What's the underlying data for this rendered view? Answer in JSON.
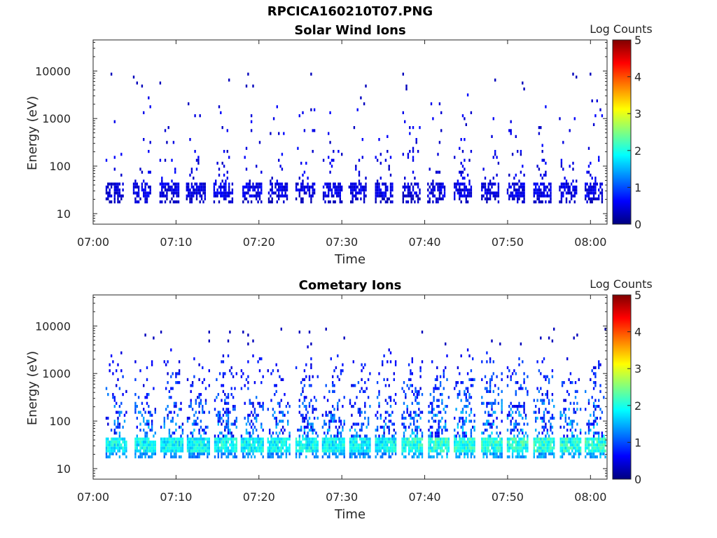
{
  "figure": {
    "title": "RPCICA160210T07.PNG"
  },
  "colormap": {
    "stops": [
      "#00007f",
      "#0000ff",
      "#0080ff",
      "#00ffff",
      "#80ff80",
      "#ffff00",
      "#ff8000",
      "#ff0000",
      "#800000"
    ]
  },
  "chart_data": [
    {
      "type": "heatmap",
      "title": "Solar Wind Ions",
      "xlabel": "Time",
      "ylabel": "Energy (eV)",
      "y_scale": "log",
      "xlim": [
        "07:00",
        "08:02"
      ],
      "ylim": [
        6,
        45000
      ],
      "x_ticks": [
        "07:00",
        "07:10",
        "07:20",
        "07:30",
        "07:40",
        "07:50",
        "08:00"
      ],
      "y_ticks": [
        10,
        100,
        1000,
        10000
      ],
      "y_tick_labels": [
        "10",
        "100",
        "1000",
        "10000"
      ],
      "colorbar": {
        "label": "Log Counts",
        "range": [
          0,
          5
        ],
        "ticks": [
          "0",
          "1",
          "2",
          "3",
          "4",
          "5"
        ]
      },
      "grid": false,
      "bursts": [
        {
          "t": 2.6,
          "intensity": 0.7,
          "high": 0.35
        },
        {
          "t": 5.9,
          "intensity": 0.9,
          "high": 0.7
        },
        {
          "t": 9.1,
          "intensity": 0.8,
          "high": 0.5
        },
        {
          "t": 12.3,
          "intensity": 0.8,
          "high": 0.5
        },
        {
          "t": 15.6,
          "intensity": 0.9,
          "high": 0.8
        },
        {
          "t": 19.1,
          "intensity": 0.85,
          "high": 0.5
        },
        {
          "t": 22.2,
          "intensity": 0.8,
          "high": 0.5
        },
        {
          "t": 25.5,
          "intensity": 0.85,
          "high": 0.6
        },
        {
          "t": 28.8,
          "intensity": 0.85,
          "high": 0.6
        },
        {
          "t": 31.9,
          "intensity": 0.85,
          "high": 0.7
        },
        {
          "t": 35.1,
          "intensity": 0.85,
          "high": 0.6
        },
        {
          "t": 38.4,
          "intensity": 0.8,
          "high": 0.8
        },
        {
          "t": 41.4,
          "intensity": 0.8,
          "high": 0.6
        },
        {
          "t": 44.6,
          "intensity": 0.85,
          "high": 0.9
        },
        {
          "t": 47.9,
          "intensity": 0.8,
          "high": 0.7
        },
        {
          "t": 51.0,
          "intensity": 0.85,
          "high": 0.8
        },
        {
          "t": 54.2,
          "intensity": 0.9,
          "high": 0.9
        },
        {
          "t": 57.3,
          "intensity": 0.85,
          "high": 0.7
        },
        {
          "t": 60.4,
          "intensity": 0.85,
          "high": 0.6
        }
      ]
    },
    {
      "type": "heatmap",
      "title": "Cometary Ions",
      "xlabel": "Time",
      "ylabel": "Energy (eV)",
      "y_scale": "log",
      "xlim": [
        "07:00",
        "08:02"
      ],
      "ylim": [
        6,
        45000
      ],
      "x_ticks": [
        "07:00",
        "07:10",
        "07:20",
        "07:30",
        "07:40",
        "07:50",
        "08:00"
      ],
      "y_ticks": [
        10,
        100,
        1000,
        10000
      ],
      "y_tick_labels": [
        "10",
        "100",
        "1000",
        "10000"
      ],
      "colorbar": {
        "label": "Log Counts",
        "range": [
          0,
          5
        ],
        "ticks": [
          "0",
          "1",
          "2",
          "3",
          "4",
          "5"
        ]
      },
      "grid": false,
      "bursts": [
        {
          "t": 2.8,
          "intensity": 1.0,
          "high": 0.6
        },
        {
          "t": 6.3,
          "intensity": 1.0,
          "high": 0.8
        },
        {
          "t": 9.4,
          "intensity": 1.0,
          "high": 0.7
        },
        {
          "t": 12.6,
          "intensity": 1.0,
          "high": 0.8
        },
        {
          "t": 15.9,
          "intensity": 1.0,
          "high": 0.8
        },
        {
          "t": 19.1,
          "intensity": 1.0,
          "high": 0.7
        },
        {
          "t": 22.3,
          "intensity": 1.0,
          "high": 0.7
        },
        {
          "t": 25.7,
          "intensity": 1.0,
          "high": 0.8
        },
        {
          "t": 28.9,
          "intensity": 1.0,
          "high": 0.8
        },
        {
          "t": 32.2,
          "intensity": 1.0,
          "high": 0.8
        },
        {
          "t": 35.3,
          "intensity": 1.0,
          "high": 0.8
        },
        {
          "t": 38.5,
          "intensity": 1.1,
          "high": 0.9
        },
        {
          "t": 41.7,
          "intensity": 1.1,
          "high": 0.9
        },
        {
          "t": 44.8,
          "intensity": 1.1,
          "high": 0.9
        },
        {
          "t": 48.1,
          "intensity": 1.1,
          "high": 0.9
        },
        {
          "t": 51.2,
          "intensity": 1.1,
          "high": 0.9
        },
        {
          "t": 54.4,
          "intensity": 1.1,
          "high": 0.9
        },
        {
          "t": 57.6,
          "intensity": 1.1,
          "high": 0.8
        },
        {
          "t": 60.6,
          "intensity": 1.1,
          "high": 0.8
        }
      ]
    }
  ]
}
